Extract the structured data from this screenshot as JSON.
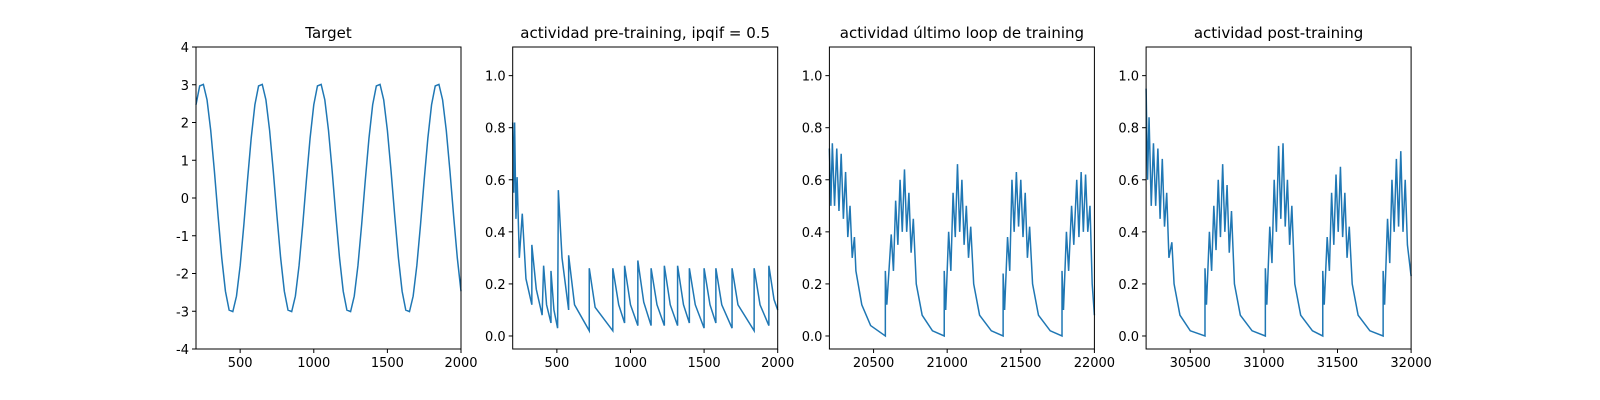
{
  "chart_data": [
    {
      "type": "line",
      "title": "Target",
      "x": [
        200,
        225,
        250,
        275,
        300,
        325,
        350,
        375,
        400,
        425,
        450,
        475,
        500,
        525,
        550,
        575,
        600,
        625,
        650,
        675,
        700,
        725,
        750,
        775,
        800,
        825,
        850,
        875,
        900,
        925,
        950,
        975,
        1000,
        1025,
        1050,
        1075,
        1100,
        1125,
        1150,
        1175,
        1200,
        1225,
        1250,
        1275,
        1300,
        1325,
        1350,
        1375,
        1400,
        1425,
        1450,
        1475,
        1500,
        1525,
        1550,
        1575,
        1600,
        1625,
        1650,
        1675,
        1700,
        1725,
        1750,
        1775,
        1800,
        1825,
        1850,
        1875,
        1900,
        1925,
        1950,
        1975,
        2000
      ],
      "series": [
        {
          "color": "#1f77b4",
          "values": [
            2.47,
            2.97,
            3.01,
            2.6,
            1.79,
            0.71,
            -0.48,
            -1.59,
            -2.47,
            -2.97,
            -3.01,
            -2.6,
            -1.79,
            -0.71,
            0.48,
            1.59,
            2.47,
            2.97,
            3.01,
            2.6,
            1.79,
            0.71,
            -0.48,
            -1.59,
            -2.47,
            -2.97,
            -3.01,
            -2.6,
            -1.79,
            -0.71,
            0.48,
            1.59,
            2.47,
            2.97,
            3.01,
            2.6,
            1.79,
            0.71,
            -0.48,
            -1.59,
            -2.47,
            -2.97,
            -3.01,
            -2.6,
            -1.79,
            -0.71,
            0.48,
            1.59,
            2.47,
            2.97,
            3.01,
            2.6,
            1.79,
            0.71,
            -0.48,
            -1.59,
            -2.47,
            -2.97,
            -3.01,
            -2.6,
            -1.79,
            -0.71,
            0.48,
            1.59,
            2.47,
            2.97,
            3.01,
            2.6,
            1.79,
            0.71,
            -0.48,
            -1.59,
            -2.47
          ]
        }
      ],
      "xlim": [
        200,
        2000
      ],
      "xticks": [
        500,
        1000,
        1500,
        2000
      ],
      "ylim": [
        -4,
        4
      ],
      "yticks": [
        -4,
        -3,
        -2,
        -1,
        0,
        1,
        2,
        3,
        4
      ]
    },
    {
      "type": "line",
      "title": "actividad pre-training, ipqif = 0.5",
      "x": [
        200,
        207,
        213,
        222,
        230,
        245,
        265,
        290,
        330,
        330,
        360,
        400,
        410,
        430,
        460,
        460,
        480,
        505,
        510,
        535,
        580,
        580,
        620,
        720,
        720,
        760,
        880,
        880,
        920,
        960,
        960,
        1000,
        1050,
        1050,
        1090,
        1140,
        1140,
        1180,
        1230,
        1230,
        1270,
        1320,
        1320,
        1360,
        1400,
        1400,
        1440,
        1500,
        1500,
        1540,
        1580,
        1580,
        1620,
        1690,
        1690,
        1730,
        1840,
        1840,
        1880,
        1940,
        1940,
        1975,
        2000
      ],
      "series": [
        {
          "color": "#1f77b4",
          "values": [
            0.82,
            0.55,
            0.82,
            0.45,
            0.61,
            0.3,
            0.47,
            0.22,
            0.12,
            0.35,
            0.18,
            0.08,
            0.27,
            0.12,
            0.05,
            0.25,
            0.1,
            0.03,
            0.56,
            0.3,
            0.1,
            0.31,
            0.12,
            0.02,
            0.26,
            0.11,
            0.02,
            0.26,
            0.12,
            0.05,
            0.27,
            0.12,
            0.04,
            0.29,
            0.13,
            0.04,
            0.26,
            0.12,
            0.04,
            0.27,
            0.12,
            0.04,
            0.27,
            0.12,
            0.05,
            0.26,
            0.12,
            0.03,
            0.26,
            0.12,
            0.05,
            0.26,
            0.12,
            0.03,
            0.26,
            0.12,
            0.02,
            0.26,
            0.12,
            0.04,
            0.27,
            0.14,
            0.1
          ]
        }
      ],
      "xlim": [
        200,
        2000
      ],
      "xticks": [
        500,
        1000,
        1500,
        2000
      ],
      "ylim": [
        -0.05,
        1.11
      ],
      "yticks": [
        {
          "value": 0,
          "label": "0.0"
        },
        0.2,
        0.4,
        0.6,
        0.8,
        {
          "value": 1,
          "label": "1.0"
        }
      ]
    },
    {
      "type": "line",
      "title": "actividad último loop de training",
      "x": [
        20200,
        20210,
        20220,
        20235,
        20250,
        20265,
        20280,
        20295,
        20310,
        20325,
        20340,
        20355,
        20370,
        20380,
        20420,
        20480,
        20580,
        20580,
        20590,
        20620,
        20635,
        20650,
        20665,
        20680,
        20695,
        20710,
        20725,
        20740,
        20755,
        20770,
        20790,
        20830,
        20900,
        20980,
        20980,
        20990,
        21010,
        21025,
        21040,
        21055,
        21070,
        21085,
        21100,
        21115,
        21130,
        21145,
        21160,
        21180,
        21220,
        21300,
        21380,
        21380,
        21390,
        21410,
        21425,
        21440,
        21455,
        21470,
        21485,
        21500,
        21515,
        21530,
        21545,
        21560,
        21580,
        21620,
        21700,
        21780,
        21780,
        21790,
        21810,
        21825,
        21845,
        21860,
        21880,
        21895,
        21910,
        21925,
        21940,
        21955,
        21970,
        21985,
        22000
      ],
      "series": [
        {
          "color": "#1f77b4",
          "values": [
            0.72,
            0.5,
            0.74,
            0.5,
            0.72,
            0.48,
            0.7,
            0.45,
            0.63,
            0.38,
            0.5,
            0.3,
            0.38,
            0.25,
            0.12,
            0.04,
            0.0,
            0.25,
            0.12,
            0.39,
            0.25,
            0.52,
            0.35,
            0.6,
            0.4,
            0.64,
            0.4,
            0.55,
            0.32,
            0.45,
            0.2,
            0.08,
            0.02,
            0.0,
            0.25,
            0.1,
            0.4,
            0.25,
            0.55,
            0.38,
            0.66,
            0.4,
            0.6,
            0.35,
            0.5,
            0.3,
            0.42,
            0.2,
            0.08,
            0.02,
            0.0,
            0.24,
            0.1,
            0.38,
            0.25,
            0.6,
            0.4,
            0.63,
            0.42,
            0.6,
            0.38,
            0.55,
            0.3,
            0.42,
            0.2,
            0.08,
            0.02,
            0.0,
            0.25,
            0.1,
            0.4,
            0.25,
            0.5,
            0.35,
            0.6,
            0.38,
            0.63,
            0.4,
            0.62,
            0.4,
            0.5,
            0.2,
            0.08
          ]
        }
      ],
      "xlim": [
        20200,
        22000
      ],
      "xticks": [
        20500,
        21000,
        21500,
        22000
      ],
      "ylim": [
        -0.05,
        1.11
      ],
      "yticks": [
        {
          "value": 0,
          "label": "0.0"
        },
        0.2,
        0.4,
        0.6,
        0.8,
        {
          "value": 1,
          "label": "1.0"
        }
      ]
    },
    {
      "type": "line",
      "title": "actividad post-training",
      "x": [
        30200,
        30210,
        30220,
        30235,
        30250,
        30265,
        30280,
        30295,
        30310,
        30325,
        30340,
        30355,
        30375,
        30390,
        30430,
        30500,
        30600,
        30600,
        30610,
        30630,
        30645,
        30660,
        30675,
        30690,
        30705,
        30720,
        30735,
        30750,
        30765,
        30780,
        30800,
        30840,
        30920,
        31010,
        31010,
        31020,
        31040,
        31055,
        31070,
        31085,
        31100,
        31115,
        31130,
        31145,
        31160,
        31175,
        31190,
        31210,
        31250,
        31330,
        31400,
        31400,
        31410,
        31430,
        31445,
        31460,
        31475,
        31490,
        31505,
        31520,
        31535,
        31550,
        31565,
        31580,
        31600,
        31640,
        31720,
        31810,
        31810,
        31820,
        31840,
        31855,
        31870,
        31885,
        31900,
        31915,
        31930,
        31945,
        31960,
        31975,
        32000
      ],
      "series": [
        {
          "color": "#1f77b4",
          "values": [
            0.95,
            0.6,
            0.84,
            0.5,
            0.74,
            0.5,
            0.72,
            0.45,
            0.68,
            0.42,
            0.55,
            0.3,
            0.36,
            0.2,
            0.08,
            0.02,
            0.0,
            0.26,
            0.12,
            0.4,
            0.25,
            0.5,
            0.33,
            0.6,
            0.38,
            0.66,
            0.4,
            0.58,
            0.32,
            0.48,
            0.2,
            0.08,
            0.02,
            0.0,
            0.26,
            0.12,
            0.42,
            0.28,
            0.6,
            0.4,
            0.73,
            0.45,
            0.74,
            0.42,
            0.6,
            0.35,
            0.5,
            0.2,
            0.08,
            0.02,
            0.0,
            0.25,
            0.12,
            0.38,
            0.25,
            0.55,
            0.35,
            0.62,
            0.4,
            0.65,
            0.38,
            0.55,
            0.3,
            0.42,
            0.2,
            0.08,
            0.02,
            0.0,
            0.25,
            0.12,
            0.45,
            0.28,
            0.6,
            0.4,
            0.68,
            0.42,
            0.71,
            0.4,
            0.6,
            0.35,
            0.23
          ]
        }
      ],
      "xlim": [
        30200,
        32000
      ],
      "xticks": [
        30500,
        31000,
        31500,
        32000
      ],
      "ylim": [
        -0.05,
        1.11
      ],
      "yticks": [
        {
          "value": 0,
          "label": "0.0"
        },
        0.2,
        0.4,
        0.6,
        0.8,
        {
          "value": 1,
          "label": "1.0"
        }
      ]
    }
  ]
}
